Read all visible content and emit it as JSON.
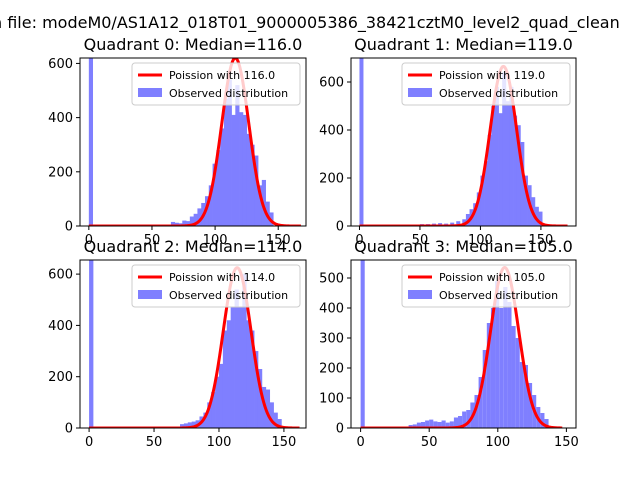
{
  "figure": {
    "suptitle": "n file: modeM0/AS1A12_018T01_9000005386_38421cztM0_level2_quad_clean"
  },
  "colors": {
    "hist": "#7f7fff",
    "poisson": "#ff0000",
    "poisson_peak_fade": "#ff8080"
  },
  "chart_data": [
    {
      "type": "bar",
      "title": "Quadrant 0: Median=116.0",
      "legend": [
        "Poission with 116.0",
        "Observed distribution"
      ],
      "legend_loc": "upper-right",
      "grid": false,
      "xlim": [
        -7,
        172
      ],
      "ylim": [
        0,
        620
      ],
      "xticks": [
        0,
        50,
        100,
        150
      ],
      "yticks": [
        0,
        200,
        400,
        600
      ],
      "poisson_mean": 116.0,
      "poisson_scale": 620,
      "poisson_xrange": [
        0,
        168
      ],
      "bin_width": 3.3,
      "bins": [
        [
          0,
          620
        ],
        [
          65,
          15
        ],
        [
          68,
          12
        ],
        [
          71,
          10
        ],
        [
          74,
          20
        ],
        [
          77,
          18
        ],
        [
          80,
          35
        ],
        [
          83,
          45
        ],
        [
          86,
          65
        ],
        [
          89,
          85
        ],
        [
          92,
          110
        ],
        [
          95,
          150
        ],
        [
          98,
          230
        ],
        [
          101,
          280
        ],
        [
          104,
          360
        ],
        [
          107,
          470
        ],
        [
          110,
          540
        ],
        [
          113,
          410
        ],
        [
          116,
          520
        ],
        [
          119,
          420
        ],
        [
          122,
          410
        ],
        [
          125,
          340
        ],
        [
          128,
          300
        ],
        [
          131,
          260
        ],
        [
          134,
          150
        ],
        [
          137,
          170
        ],
        [
          140,
          90
        ],
        [
          143,
          50
        ]
      ]
    },
    {
      "type": "bar",
      "title": "Quadrant 1: Median=119.0",
      "legend": [
        "Poission with 119.0",
        "Observed distribution"
      ],
      "legend_loc": "upper-right",
      "grid": false,
      "xlim": [
        -7,
        179
      ],
      "ylim": [
        0,
        700
      ],
      "xticks": [
        0,
        50,
        100,
        150
      ],
      "yticks": [
        0,
        200,
        400,
        600
      ],
      "poisson_mean": 119.0,
      "poisson_scale": 665,
      "poisson_xrange": [
        0,
        172
      ],
      "bin_width": 3.3,
      "bins": [
        [
          0,
          700
        ],
        [
          50,
          8
        ],
        [
          55,
          8
        ],
        [
          60,
          10
        ],
        [
          65,
          12
        ],
        [
          70,
          10
        ],
        [
          75,
          14
        ],
        [
          80,
          20
        ],
        [
          85,
          28
        ],
        [
          88,
          50
        ],
        [
          91,
          70
        ],
        [
          94,
          95
        ],
        [
          97,
          140
        ],
        [
          100,
          210
        ],
        [
          103,
          270
        ],
        [
          106,
          380
        ],
        [
          109,
          500
        ],
        [
          112,
          580
        ],
        [
          115,
          470
        ],
        [
          118,
          640
        ],
        [
          121,
          520
        ],
        [
          124,
          580
        ],
        [
          127,
          460
        ],
        [
          130,
          420
        ],
        [
          133,
          350
        ],
        [
          136,
          210
        ],
        [
          139,
          170
        ],
        [
          142,
          120
        ],
        [
          145,
          80
        ],
        [
          148,
          60
        ]
      ]
    },
    {
      "type": "bar",
      "title": "Quadrant 2: Median=114.0",
      "legend": [
        "Poission with 114.0",
        "Observed distribution"
      ],
      "legend_loc": "upper-right",
      "grid": false,
      "xlim": [
        -7,
        167
      ],
      "ylim": [
        0,
        655
      ],
      "xticks": [
        0,
        50,
        100,
        150
      ],
      "yticks": [
        0,
        200,
        400,
        600
      ],
      "poisson_mean": 114.0,
      "poisson_scale": 625,
      "poisson_xrange": [
        0,
        162
      ],
      "bin_width": 3.3,
      "bins": [
        [
          0,
          655
        ],
        [
          70,
          15
        ],
        [
          73,
          18
        ],
        [
          76,
          22
        ],
        [
          79,
          25
        ],
        [
          82,
          30
        ],
        [
          85,
          45
        ],
        [
          88,
          60
        ],
        [
          91,
          100
        ],
        [
          94,
          140
        ],
        [
          97,
          200
        ],
        [
          100,
          250
        ],
        [
          103,
          380
        ],
        [
          106,
          420
        ],
        [
          109,
          470
        ],
        [
          112,
          540
        ],
        [
          115,
          470
        ],
        [
          118,
          600
        ],
        [
          121,
          420
        ],
        [
          124,
          380
        ],
        [
          127,
          300
        ],
        [
          130,
          230
        ],
        [
          133,
          160
        ],
        [
          136,
          150
        ],
        [
          139,
          100
        ],
        [
          142,
          60
        ],
        [
          145,
          35
        ]
      ]
    },
    {
      "type": "bar",
      "title": "Quadrant 3: Median=105.0",
      "legend": [
        "Poission with 105.0",
        "Observed distribution"
      ],
      "legend_loc": "upper-right",
      "grid": false,
      "xlim": [
        -7,
        157
      ],
      "ylim": [
        0,
        560
      ],
      "xticks": [
        0,
        50,
        100,
        150
      ],
      "yticks": [
        0,
        100,
        200,
        300,
        400,
        500
      ],
      "poisson_mean": 105.0,
      "poisson_scale": 535,
      "poisson_xrange": [
        0,
        147
      ],
      "bin_width": 3.0,
      "bins": [
        [
          0,
          560
        ],
        [
          35,
          10
        ],
        [
          38,
          12
        ],
        [
          41,
          18
        ],
        [
          44,
          20
        ],
        [
          47,
          25
        ],
        [
          50,
          28
        ],
        [
          53,
          22
        ],
        [
          56,
          20
        ],
        [
          59,
          25
        ],
        [
          62,
          18
        ],
        [
          65,
          22
        ],
        [
          68,
          35
        ],
        [
          71,
          40
        ],
        [
          74,
          55
        ],
        [
          77,
          60
        ],
        [
          80,
          85
        ],
        [
          83,
          110
        ],
        [
          86,
          170
        ],
        [
          89,
          260
        ],
        [
          92,
          350
        ],
        [
          95,
          400
        ],
        [
          98,
          490
        ],
        [
          101,
          400
        ],
        [
          104,
          470
        ],
        [
          107,
          420
        ],
        [
          110,
          340
        ],
        [
          113,
          300
        ],
        [
          116,
          220
        ],
        [
          119,
          210
        ],
        [
          122,
          150
        ],
        [
          125,
          110
        ],
        [
          128,
          70
        ],
        [
          131,
          50
        ],
        [
          134,
          30
        ]
      ]
    }
  ]
}
